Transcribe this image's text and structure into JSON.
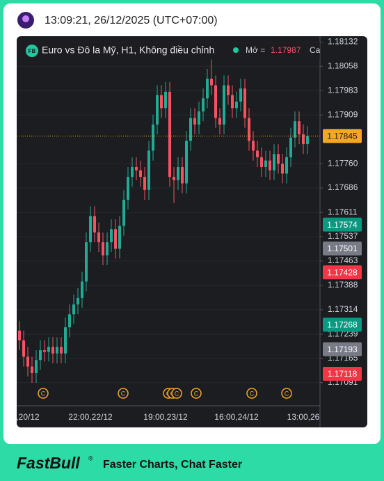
{
  "header": {
    "timestamp": "13:09:21, 26/12/2025 (UTC+07:00)"
  },
  "chart_data": {
    "type": "candlestick",
    "title": "Euro vs Đô la Mỹ, H1, Không điều chỉnh",
    "badge": "FB",
    "open_label": "Mở =",
    "open_value": 1.17987,
    "high_label": "Ca",
    "up_color": "#22ab94",
    "down_color": "#f7525f",
    "categories": [
      null,
      null,
      ",20/12",
      null,
      null,
      null,
      null,
      null,
      null,
      null,
      null,
      null,
      null,
      null,
      null,
      null,
      null,
      "22:00,22/12",
      null,
      null,
      null,
      null,
      null,
      null,
      null,
      null,
      null,
      null,
      null,
      null,
      null,
      null,
      null,
      null,
      null,
      "19:00,23/12",
      null,
      null,
      null,
      null,
      null,
      null,
      null,
      null,
      null,
      null,
      null,
      null,
      null,
      null,
      null,
      null,
      "16:00,24/12",
      null,
      null,
      null,
      null,
      null,
      null,
      null,
      null,
      null,
      null,
      null,
      null,
      null,
      null,
      null,
      "13:00,26",
      null
    ],
    "open": [
      1.1725,
      1.1722,
      1.1717,
      1.1714,
      1.1712,
      1.1716,
      1.1719,
      1.17185,
      1.172,
      1.1718,
      1.172,
      1.1718,
      1.1726,
      1.173,
      1.1733,
      1.1735,
      1.174,
      1.1752,
      1.176,
      1.1755,
      1.1752,
      1.1748,
      1.1752,
      1.1756,
      1.175,
      1.1757,
      1.1765,
      1.1772,
      1.1775,
      1.1774,
      1.1772,
      1.1768,
      1.178,
      1.1788,
      1.1797,
      1.1793,
      1.1798,
      1.1772,
      1.1771,
      1.1775,
      1.177,
      1.1783,
      1.179,
      1.1788,
      1.1792,
      1.1796,
      1.1802,
      1.18,
      1.179,
      1.1788,
      1.18,
      1.1797,
      1.1793,
      1.1795,
      1.1799,
      1.179,
      1.1783,
      1.178,
      1.1778,
      1.1775,
      1.1777,
      1.1774,
      1.1779,
      1.1776,
      1.1773,
      1.1778,
      1.1784,
      1.1789,
      1.1785,
      1.1782
    ],
    "high": [
      1.1728,
      1.1725,
      1.172,
      1.1717,
      1.1719,
      1.1722,
      1.1722,
      1.1723,
      1.1723,
      1.1723,
      1.1723,
      1.1729,
      1.1733,
      1.1736,
      1.1738,
      1.1743,
      1.1755,
      1.1763,
      1.1763,
      1.1758,
      1.1755,
      1.1755,
      1.1759,
      1.1759,
      1.176,
      1.1768,
      1.1775,
      1.1778,
      1.1778,
      1.1777,
      1.1775,
      1.1783,
      1.1791,
      1.18,
      1.18,
      1.1801,
      1.1801,
      1.1775,
      1.1778,
      1.1778,
      1.1786,
      1.1793,
      1.1793,
      1.1795,
      1.1799,
      1.1805,
      1.1808,
      1.1803,
      1.1793,
      1.1803,
      1.1803,
      1.18,
      1.1798,
      1.1802,
      1.1802,
      1.1793,
      1.1786,
      1.1783,
      1.1781,
      1.178,
      1.178,
      1.1782,
      1.1782,
      1.1779,
      1.1781,
      1.1787,
      1.1792,
      1.1792,
      1.1788,
      1.17875
    ],
    "low": [
      1.1719,
      1.1714,
      1.1711,
      1.1709,
      1.1709,
      1.1713,
      1.17155,
      1.17155,
      1.1715,
      1.1715,
      1.1715,
      1.1715,
      1.1723,
      1.1727,
      1.173,
      1.1732,
      1.1737,
      1.1749,
      1.1752,
      1.1749,
      1.1745,
      1.1745,
      1.1749,
      1.1747,
      1.1747,
      1.1754,
      1.1762,
      1.1769,
      1.1771,
      1.1769,
      1.1765,
      1.1765,
      1.1777,
      1.1785,
      1.179,
      1.179,
      1.1769,
      1.1764,
      1.1768,
      1.1767,
      1.1767,
      1.178,
      1.1785,
      1.1785,
      1.1789,
      1.1793,
      1.1797,
      1.1787,
      1.1785,
      1.1785,
      1.1794,
      1.179,
      1.179,
      1.1792,
      1.1787,
      1.178,
      1.1777,
      1.1775,
      1.1772,
      1.1772,
      1.1771,
      1.1771,
      1.1773,
      1.177,
      1.177,
      1.1775,
      1.1781,
      1.1782,
      1.1779,
      1.1779
    ],
    "close": [
      1.1722,
      1.1717,
      1.1714,
      1.1712,
      1.1716,
      1.1719,
      1.17185,
      1.172,
      1.1718,
      1.172,
      1.1718,
      1.1726,
      1.173,
      1.1733,
      1.1735,
      1.174,
      1.1752,
      1.176,
      1.1755,
      1.1752,
      1.1748,
      1.1752,
      1.1756,
      1.175,
      1.1757,
      1.1765,
      1.1772,
      1.1775,
      1.1774,
      1.1772,
      1.1768,
      1.178,
      1.1788,
      1.1797,
      1.1793,
      1.1798,
      1.1772,
      1.1771,
      1.1775,
      1.177,
      1.1783,
      1.179,
      1.1788,
      1.1792,
      1.1796,
      1.1802,
      1.18,
      1.179,
      1.1788,
      1.18,
      1.1797,
      1.1793,
      1.1795,
      1.1799,
      1.179,
      1.1783,
      1.178,
      1.1778,
      1.1775,
      1.1777,
      1.1774,
      1.1779,
      1.1776,
      1.1773,
      1.1778,
      1.1784,
      1.1789,
      1.1785,
      1.1782,
      1.17845
    ],
    "ylim": [
      1.1702,
      1.1815
    ],
    "yticks": [
      1.18132,
      1.18058,
      1.17983,
      1.17909,
      {
        "value": 1.1776,
        "label": "1.17760"
      },
      1.17686,
      1.17611,
      1.17537,
      1.17463,
      1.17388,
      1.17314,
      1.17239,
      1.17165,
      1.17091
    ],
    "grid": true,
    "current_price": {
      "value": 1.17845,
      "color": "#f5a623"
    },
    "price_labels": [
      {
        "value": 1.17574,
        "color": "#089981"
      },
      {
        "value": 1.17501,
        "color": "#787b86"
      },
      {
        "value": 1.17428,
        "color": "#f23645"
      },
      {
        "value": 1.17268,
        "color": "#089981"
      },
      {
        "value": 1.17193,
        "color": "#787b86"
      },
      {
        "value": 1.17118,
        "color": "#f23645"
      }
    ],
    "event_label": "C"
  },
  "footer": {
    "brand": "FastBull",
    "mark": "®",
    "slogan": "Faster Charts, Chat Faster"
  }
}
